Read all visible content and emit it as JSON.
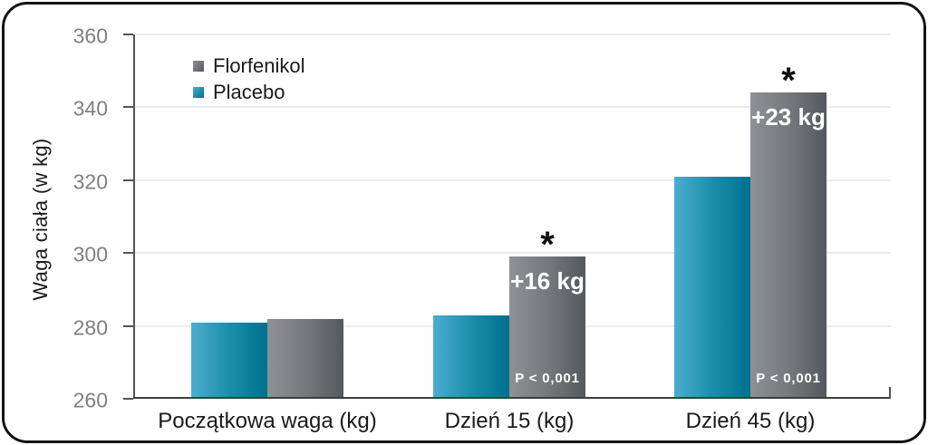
{
  "chart_data": {
    "type": "bar",
    "title": "",
    "xlabel": "",
    "ylabel": "Waga ciała (w kg)",
    "ylim": [
      260,
      360
    ],
    "yticks": [
      260,
      280,
      300,
      320,
      340,
      360
    ],
    "grid": true,
    "categories": [
      "Początkowa waga (kg)",
      "Dzień 15 (kg)",
      "Dzień 45 (kg)"
    ],
    "bar_order": [
      "Placebo",
      "Florfenikol"
    ],
    "series": [
      {
        "name": "Placebo",
        "values": [
          281,
          283,
          321
        ],
        "color_start": "#4badd0",
        "color_mid": "#1b8cab",
        "color_end": "#00708e"
      },
      {
        "name": "Florfenikol",
        "values": [
          282,
          299,
          344
        ],
        "color_start": "#8e9196",
        "color_mid": "#74777c",
        "color_end": "#55585e"
      }
    ],
    "legend": {
      "position": "top-left",
      "entries": [
        "Florfenikol",
        "Placebo"
      ]
    },
    "annotations": [
      {
        "category_index": 1,
        "series": "Florfenikol",
        "gain_label": "+16 kg",
        "p_label": "P < 0,001",
        "significance": "*"
      },
      {
        "category_index": 2,
        "series": "Florfenikol",
        "gain_label": "+23 kg",
        "p_label": "P < 0,001",
        "significance": "*"
      }
    ]
  },
  "colors": {
    "grid": "#ececec",
    "axis": "#545454",
    "tick_label": "#7f7f7f",
    "text": "#1a1a1a",
    "annotation_text": "#ffffff",
    "frame_border": "#141414"
  }
}
